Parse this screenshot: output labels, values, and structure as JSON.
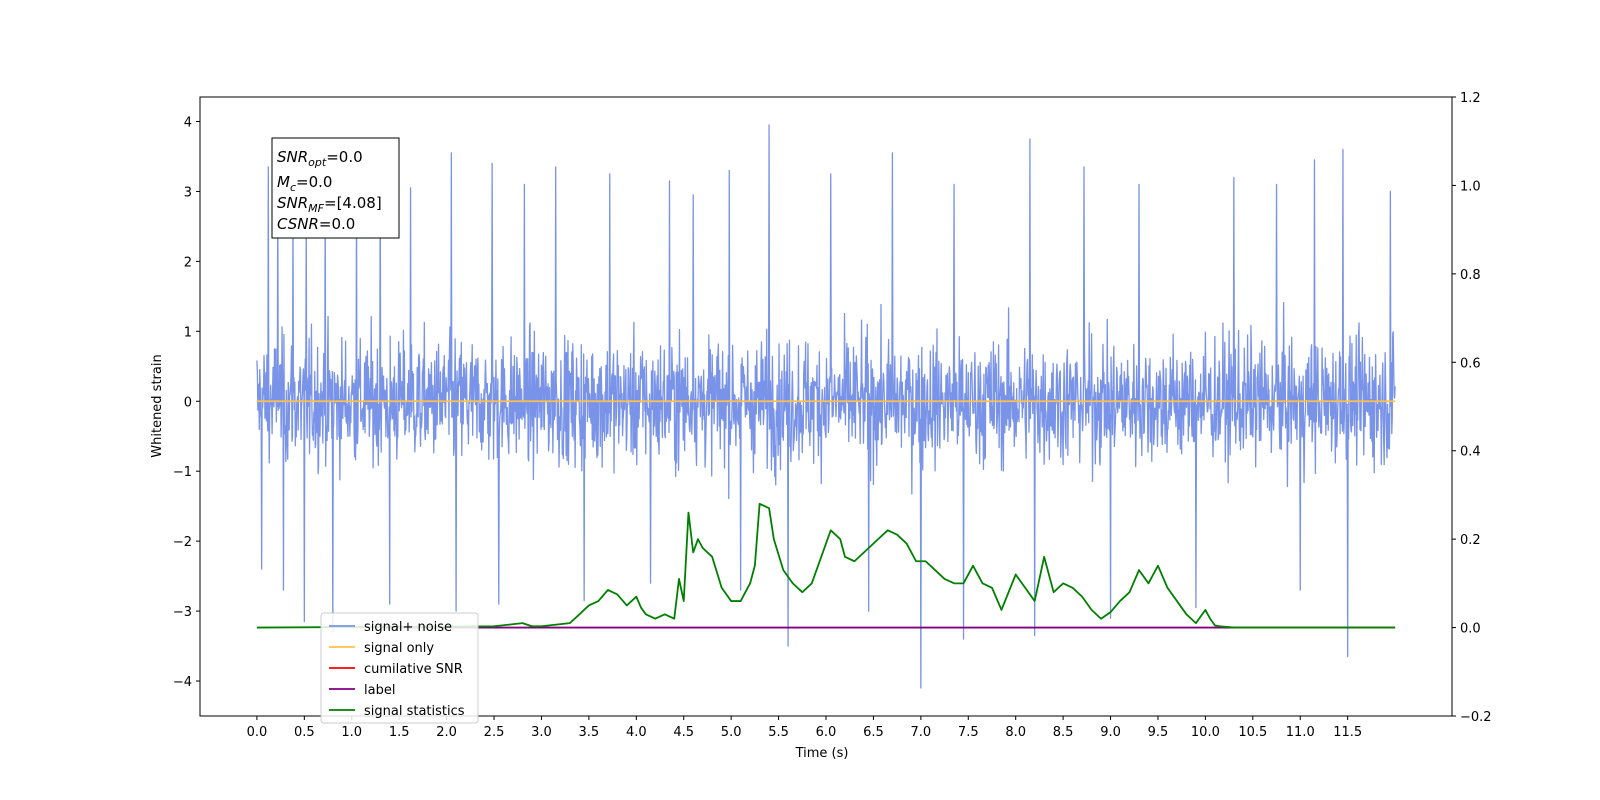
{
  "chart_data": {
    "type": "line",
    "xlabel": "Time (s)",
    "ylabel": "Whitened strain",
    "xlim": [
      -0.6,
      12.6
    ],
    "ylim": [
      -4.5,
      4.35
    ],
    "y2lim": [
      -0.2,
      1.2
    ],
    "x_ticks": [
      "0.0",
      "0.5",
      "1.0",
      "1.5",
      "2.0",
      "2.5",
      "3.0",
      "3.5",
      "4.0",
      "4.5",
      "5.0",
      "5.5",
      "6.0",
      "6.5",
      "7.0",
      "7.5",
      "8.0",
      "8.5",
      "9.0",
      "9.5",
      "10.0",
      "10.5",
      "11.0",
      "11.5"
    ],
    "y_ticks": [
      "4",
      "3",
      "2",
      "1",
      "0",
      "−1",
      "−2",
      "−3",
      "−4"
    ],
    "y2_ticks": [
      "1.2",
      "1.0",
      "0.8",
      "0.6",
      "0.4",
      "0.2",
      "0.0",
      "−0.2"
    ],
    "annotation": {
      "line1_main": "SNR",
      "line1_sub": "opt",
      "line1_rest": "=0.0",
      "line2_main": "M",
      "line2_sub": "c",
      "line2_rest": "=0.0",
      "line3_main": "SNR",
      "line3_sub": "MF",
      "line3_rest": "=[4.08]",
      "line4_main": "CSNR",
      "line4_rest": "=0.0"
    },
    "legend": [
      {
        "label": "signal+ noise",
        "color": "#7893e8"
      },
      {
        "label": "signal only",
        "color": "#ffc04d"
      },
      {
        "label": "cumilative SNR",
        "color": "#ff0000"
      },
      {
        "label": "label",
        "color": "#800080"
      },
      {
        "label": "signal statistics",
        "color": "#008000"
      }
    ],
    "series": [
      {
        "name": "signal+ noise",
        "axis": "left",
        "color": "#7893e8",
        "x_range": [
          0.0,
          12.0
        ],
        "band": [
          -1.6,
          1.6
        ],
        "peaks": [
          {
            "x": 0.12,
            "y": 3.35
          },
          {
            "x": 0.22,
            "y": 3.2
          },
          {
            "x": 0.38,
            "y": 2.75
          },
          {
            "x": 0.52,
            "y": 2.6
          },
          {
            "x": 0.72,
            "y": 3.0
          },
          {
            "x": 1.05,
            "y": 3.1
          },
          {
            "x": 1.3,
            "y": 3.3
          },
          {
            "x": 1.62,
            "y": 3.05
          },
          {
            "x": 2.05,
            "y": 3.55
          },
          {
            "x": 2.48,
            "y": 3.4
          },
          {
            "x": 2.82,
            "y": 3.1
          },
          {
            "x": 3.15,
            "y": 3.35
          },
          {
            "x": 3.72,
            "y": 3.25
          },
          {
            "x": 4.35,
            "y": 3.15
          },
          {
            "x": 4.6,
            "y": 2.95
          },
          {
            "x": 4.98,
            "y": 3.3
          },
          {
            "x": 5.4,
            "y": 3.95
          },
          {
            "x": 6.05,
            "y": 3.25
          },
          {
            "x": 6.7,
            "y": 3.55
          },
          {
            "x": 7.35,
            "y": 3.1
          },
          {
            "x": 8.15,
            "y": 3.75
          },
          {
            "x": 8.72,
            "y": 3.35
          },
          {
            "x": 9.3,
            "y": 3.1
          },
          {
            "x": 10.3,
            "y": 3.2
          },
          {
            "x": 10.75,
            "y": 3.1
          },
          {
            "x": 11.15,
            "y": 3.45
          },
          {
            "x": 11.45,
            "y": 3.6
          },
          {
            "x": 11.95,
            "y": 3.0
          }
        ],
        "troughs": [
          {
            "x": 0.05,
            "y": -2.4
          },
          {
            "x": 0.28,
            "y": -2.7
          },
          {
            "x": 0.5,
            "y": -3.15
          },
          {
            "x": 0.8,
            "y": -3.3
          },
          {
            "x": 1.4,
            "y": -2.9
          },
          {
            "x": 2.1,
            "y": -3.0
          },
          {
            "x": 2.55,
            "y": -2.9
          },
          {
            "x": 3.45,
            "y": -2.85
          },
          {
            "x": 4.15,
            "y": -2.6
          },
          {
            "x": 5.1,
            "y": -2.7
          },
          {
            "x": 5.6,
            "y": -3.5
          },
          {
            "x": 6.45,
            "y": -3.0
          },
          {
            "x": 7.0,
            "y": -4.1
          },
          {
            "x": 7.45,
            "y": -3.4
          },
          {
            "x": 8.2,
            "y": -3.35
          },
          {
            "x": 9.0,
            "y": -3.1
          },
          {
            "x": 9.9,
            "y": -2.95
          },
          {
            "x": 11.0,
            "y": -2.7
          },
          {
            "x": 11.5,
            "y": -3.65
          }
        ]
      },
      {
        "name": "signal only",
        "axis": "left",
        "color": "#ffc04d",
        "x": [
          0.0,
          12.0
        ],
        "y": [
          0.0,
          0.0
        ]
      },
      {
        "name": "label",
        "axis": "right",
        "color": "#800080",
        "x": [
          1.3,
          12.0
        ],
        "y": [
          0.0,
          0.0
        ]
      },
      {
        "name": "signal statistics",
        "axis": "right",
        "color": "#008000",
        "x": [
          0.0,
          2.5,
          2.8,
          2.9,
          3.0,
          3.3,
          3.4,
          3.5,
          3.6,
          3.7,
          3.8,
          3.9,
          4.0,
          4.05,
          4.1,
          4.2,
          4.3,
          4.4,
          4.45,
          4.5,
          4.55,
          4.6,
          4.65,
          4.7,
          4.8,
          4.9,
          5.0,
          5.1,
          5.2,
          5.25,
          5.3,
          5.4,
          5.45,
          5.55,
          5.65,
          5.75,
          5.85,
          5.95,
          6.05,
          6.15,
          6.2,
          6.3,
          6.45,
          6.55,
          6.65,
          6.75,
          6.85,
          6.95,
          7.05,
          7.15,
          7.25,
          7.35,
          7.45,
          7.55,
          7.65,
          7.75,
          7.85,
          8.0,
          8.1,
          8.2,
          8.3,
          8.4,
          8.5,
          8.6,
          8.7,
          8.8,
          8.9,
          9.0,
          9.1,
          9.2,
          9.3,
          9.4,
          9.5,
          9.6,
          9.7,
          9.8,
          9.85,
          9.9,
          10.0,
          10.05,
          10.1,
          10.15,
          10.3,
          12.0
        ],
        "y": [
          0.0,
          0.003,
          0.01,
          0.003,
          0.003,
          0.01,
          0.03,
          0.05,
          0.06,
          0.085,
          0.075,
          0.05,
          0.07,
          0.045,
          0.03,
          0.02,
          0.03,
          0.02,
          0.11,
          0.06,
          0.26,
          0.17,
          0.2,
          0.18,
          0.16,
          0.09,
          0.06,
          0.06,
          0.1,
          0.14,
          0.28,
          0.27,
          0.2,
          0.13,
          0.1,
          0.08,
          0.1,
          0.16,
          0.22,
          0.2,
          0.16,
          0.15,
          0.18,
          0.2,
          0.22,
          0.21,
          0.19,
          0.15,
          0.15,
          0.13,
          0.11,
          0.1,
          0.1,
          0.14,
          0.1,
          0.09,
          0.04,
          0.12,
          0.09,
          0.06,
          0.16,
          0.08,
          0.1,
          0.09,
          0.07,
          0.04,
          0.02,
          0.035,
          0.06,
          0.08,
          0.13,
          0.1,
          0.14,
          0.09,
          0.06,
          0.03,
          0.02,
          0.01,
          0.04,
          0.02,
          0.005,
          0.003,
          0.0,
          0.0
        ]
      }
    ]
  }
}
